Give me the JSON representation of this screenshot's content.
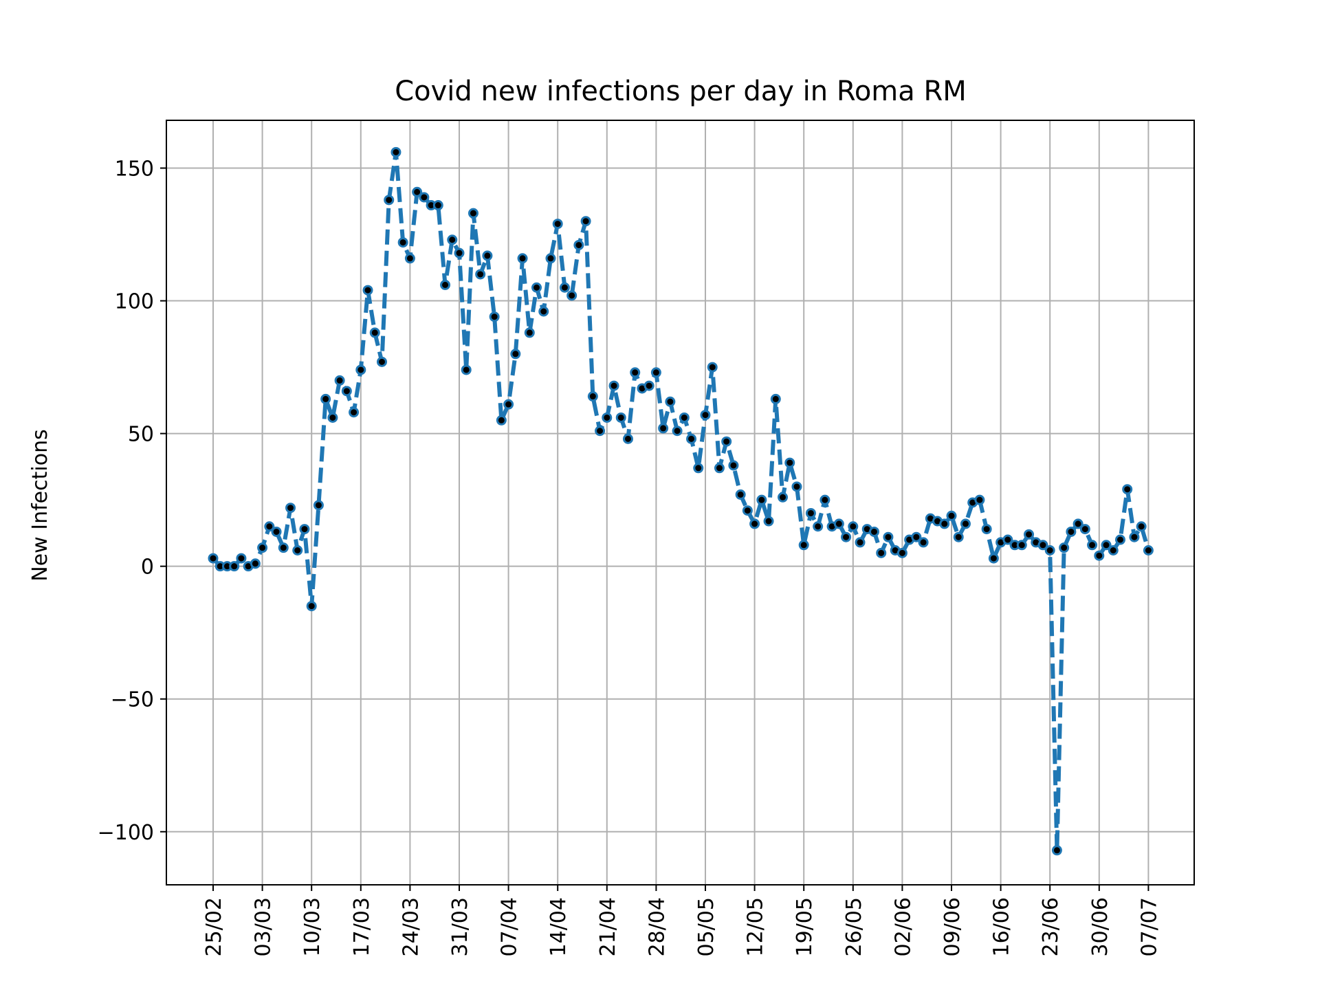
{
  "chart_data": {
    "type": "line",
    "title": "Covid new infections per day in Roma RM",
    "xlabel": "",
    "ylabel": "New Infections",
    "x_ticks": [
      "25/02",
      "03/03",
      "10/03",
      "17/03",
      "24/03",
      "31/03",
      "07/04",
      "14/04",
      "21/04",
      "28/04",
      "05/05",
      "12/05",
      "19/05",
      "26/05",
      "02/06",
      "09/06",
      "16/06",
      "23/06",
      "30/06",
      "07/07"
    ],
    "yticks": [
      -100,
      -50,
      0,
      50,
      100,
      150
    ],
    "ytick_labels": [
      "−100",
      "−50",
      "0",
      "50",
      "100",
      "150"
    ],
    "ylim": [
      -120,
      168
    ],
    "grid": true,
    "x_start": "25/02",
    "series": [
      {
        "color": "#1f77b4",
        "marker_color": "#000000",
        "line_style": "dashed",
        "values": [
          3,
          0,
          0,
          0,
          3,
          0,
          1,
          7,
          15,
          13,
          7,
          22,
          6,
          14,
          -15,
          23,
          63,
          56,
          70,
          66,
          58,
          74,
          104,
          88,
          77,
          138,
          156,
          122,
          116,
          141,
          139,
          136,
          136,
          106,
          123,
          118,
          74,
          133,
          110,
          117,
          94,
          55,
          61,
          80,
          116,
          88,
          105,
          96,
          116,
          129,
          105,
          102,
          121,
          130,
          64,
          51,
          56,
          68,
          56,
          48,
          73,
          67,
          68,
          73,
          52,
          62,
          51,
          56,
          48,
          37,
          57,
          75,
          37,
          47,
          38,
          27,
          21,
          16,
          25,
          17,
          63,
          26,
          39,
          30,
          8,
          20,
          15,
          25,
          15,
          16,
          11,
          15,
          9,
          14,
          13,
          5,
          11,
          6,
          5,
          10,
          11,
          9,
          18,
          17,
          16,
          19,
          11,
          16,
          24,
          25,
          14,
          3,
          9,
          10,
          8,
          8,
          12,
          9,
          8,
          6,
          -107,
          7,
          13,
          16,
          14,
          8,
          4,
          8,
          6,
          10,
          29,
          11,
          15,
          6
        ]
      }
    ]
  }
}
